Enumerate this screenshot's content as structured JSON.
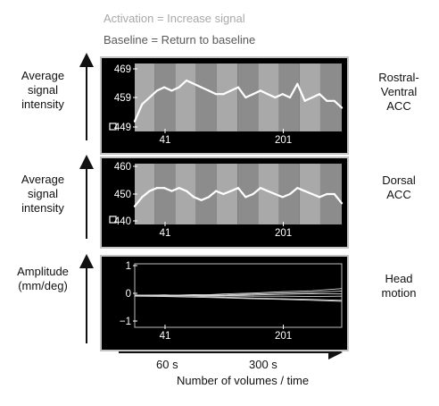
{
  "legend": {
    "activation": "Activation = Increase signal",
    "baseline": "Baseline = Return to baseline"
  },
  "colors": {
    "activation_band": "#a9a9a9",
    "baseline_band": "#8c8c8c",
    "panel_background": "#000000",
    "trace": "#ffffff"
  },
  "x_axis": {
    "tick_labels": [
      "60 s",
      "300 s"
    ],
    "title": "Number of volumes / time"
  },
  "chart_data": [
    {
      "type": "line",
      "left_label": [
        "Average",
        "signal",
        "intensity"
      ],
      "right_label": [
        "Rostral-",
        "Ventral",
        "ACC"
      ],
      "ylim": [
        449,
        469
      ],
      "yticks": [
        "469",
        "459",
        "449"
      ],
      "xlim": [
        0,
        280
      ],
      "xticks": [
        "41",
        "201"
      ],
      "series": [
        {
          "x": [
            0,
            10,
            20,
            30,
            40,
            50,
            60,
            70,
            80,
            90,
            100,
            110,
            120,
            130,
            140,
            150,
            160,
            170,
            180,
            190,
            200,
            210,
            220,
            230,
            240,
            250,
            260,
            270,
            280
          ],
          "values": [
            452,
            457,
            459,
            461,
            462,
            461,
            462,
            464,
            463,
            462,
            461,
            460,
            460,
            461,
            462,
            459,
            460,
            461,
            460,
            459,
            460,
            459,
            463,
            458,
            459,
            460,
            458,
            458,
            456
          ]
        }
      ]
    },
    {
      "type": "line",
      "left_label": [
        "Average",
        "signal",
        "intensity"
      ],
      "right_label": [
        "Dorsal",
        "ACC"
      ],
      "ylim": [
        440,
        460
      ],
      "yticks": [
        "460",
        "450",
        "440"
      ],
      "xlim": [
        0,
        280
      ],
      "xticks": [
        "41",
        "201"
      ],
      "series": [
        {
          "x": [
            0,
            10,
            20,
            30,
            40,
            50,
            60,
            70,
            80,
            90,
            100,
            110,
            120,
            130,
            140,
            150,
            160,
            170,
            180,
            190,
            200,
            210,
            220,
            230,
            240,
            250,
            260,
            270,
            280
          ],
          "values": [
            446,
            449,
            451,
            452,
            452,
            451,
            452,
            451,
            449,
            448,
            449,
            451,
            450,
            451,
            452,
            449,
            450,
            452,
            451,
            450,
            449,
            450,
            452,
            451,
            450,
            449,
            450,
            450,
            447
          ]
        }
      ]
    },
    {
      "type": "line",
      "left_label": [
        "Amplitude",
        "(mm/deg)"
      ],
      "right_label": [
        "Head",
        "motion"
      ],
      "ylim": [
        -1,
        1
      ],
      "yticks": [
        "1",
        "0",
        "−1"
      ],
      "xlim": [
        0,
        280
      ],
      "xticks": [
        "41",
        "201"
      ],
      "series": [
        {
          "x": [
            0,
            40,
            80,
            120,
            160,
            200,
            240,
            280
          ],
          "values": [
            0.0,
            0.02,
            0.0,
            0.05,
            0.08,
            0.12,
            0.15,
            0.22
          ]
        },
        {
          "x": [
            0,
            40,
            80,
            120,
            160,
            200,
            240,
            280
          ],
          "values": [
            0.02,
            0.0,
            0.03,
            0.02,
            0.05,
            0.08,
            0.1,
            0.14
          ]
        },
        {
          "x": [
            0,
            40,
            80,
            120,
            160,
            200,
            240,
            280
          ],
          "values": [
            0.0,
            -0.02,
            0.0,
            0.0,
            0.02,
            0.04,
            0.06,
            0.05
          ]
        },
        {
          "x": [
            0,
            40,
            80,
            120,
            160,
            200,
            240,
            280
          ],
          "values": [
            -0.02,
            -0.03,
            -0.05,
            -0.07,
            -0.1,
            -0.12,
            -0.15,
            -0.18
          ]
        },
        {
          "x": [
            0,
            40,
            80,
            120,
            160,
            200,
            240,
            280
          ],
          "values": [
            0.0,
            0.0,
            -0.02,
            -0.05,
            -0.08,
            -0.1,
            -0.12,
            -0.15
          ]
        },
        {
          "x": [
            0,
            40,
            80,
            120,
            160,
            200,
            240,
            280
          ],
          "values": [
            0.01,
            0.02,
            0.0,
            -0.01,
            -0.02,
            -0.02,
            -0.03,
            -0.02
          ]
        }
      ]
    }
  ]
}
